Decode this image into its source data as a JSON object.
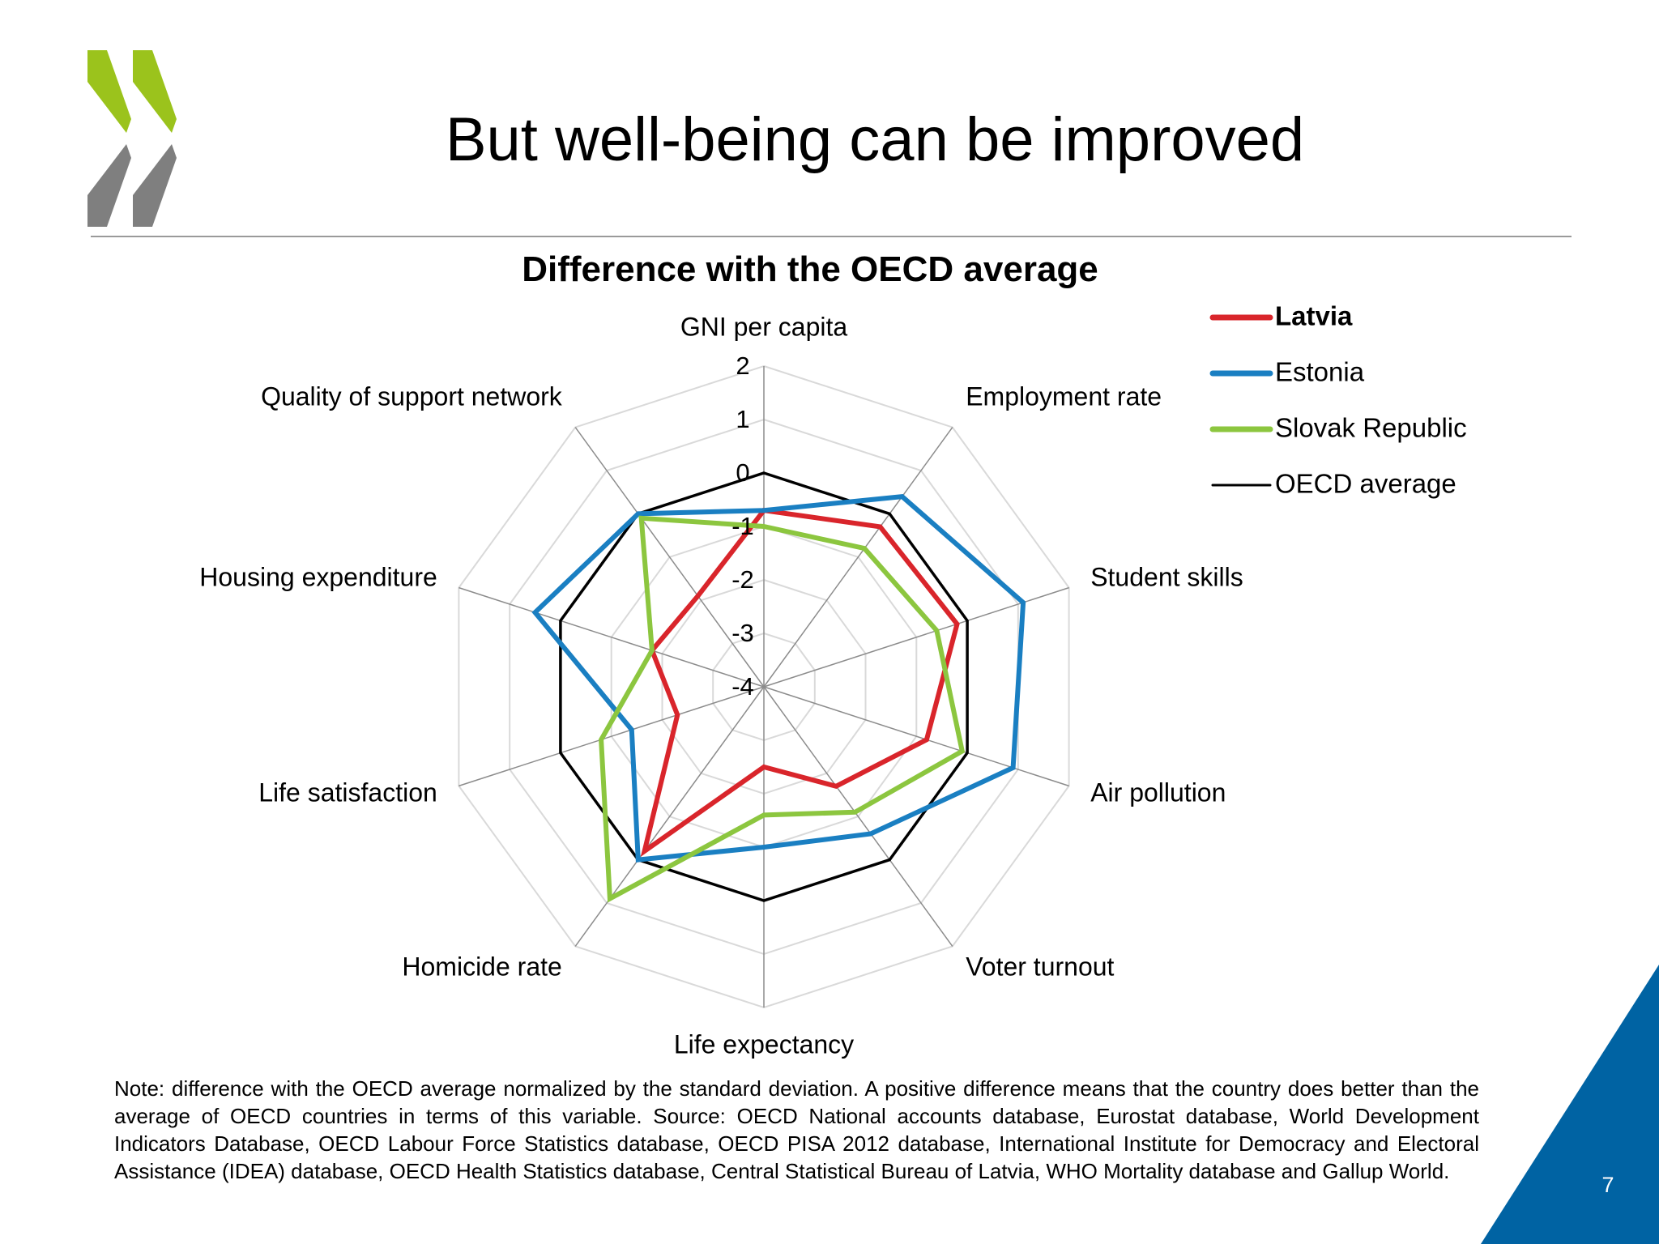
{
  "slide": {
    "title": "But well-being can be improved",
    "page_number": "7",
    "note": "Note: difference with the OECD average normalized by the standard deviation. A positive difference means that the country does better than the average of OECD countries in terms of this variable. Source: OECD National accounts database, Eurostat database, World Development Indicators Database, OECD Labour Force Statistics database, OECD PISA 2012 database, International Institute for Democracy and Electoral Assistance (IDEA) database, OECD Health Statistics database, Central Statistical Bureau of Latvia, WHO Mortality database and Gallup World.",
    "logo_icon": "oecd-chevrons-icon",
    "colors": {
      "logo_green": "#9bc31c",
      "logo_gray": "#7f7f7f",
      "corner_blue": "#0063a3"
    }
  },
  "chart_data": {
    "type": "radar",
    "title": "Difference with the OECD average",
    "categories": [
      "GNI per capita",
      "Employment rate",
      "Student skills",
      "Air pollution",
      "Voter turnout",
      "Life expectancy",
      "Homicide rate",
      "Life satisfaction",
      "Housing expenditure",
      "Quality of support network"
    ],
    "radial_ticks": [
      "2",
      "1",
      "0",
      "-1",
      "-2",
      "-3",
      "-4"
    ],
    "rlim": [
      -4,
      2
    ],
    "grid": true,
    "legend_position": "top-right",
    "series": [
      {
        "name": "Latvia",
        "color": "#d9252b",
        "bold": true,
        "values": [
          -0.7,
          -0.3,
          -0.2,
          -0.8,
          -1.7,
          -2.5,
          -0.2,
          -2.3,
          -1.8,
          -1.9
        ]
      },
      {
        "name": "Estonia",
        "color": "#1a7fc2",
        "bold": false,
        "values": [
          -0.7,
          0.4,
          1.1,
          0.9,
          -0.6,
          -1.0,
          0.0,
          -1.4,
          0.5,
          0.0
        ]
      },
      {
        "name": "Slovak Republic",
        "color": "#8cc63f",
        "bold": false,
        "values": [
          -1.0,
          -0.8,
          -0.6,
          -0.1,
          -1.1,
          -1.6,
          0.9,
          -0.8,
          -1.8,
          -0.1
        ]
      },
      {
        "name": "OECD average",
        "color": "#000000",
        "bold": false,
        "values": [
          0,
          0,
          0,
          0,
          0,
          0,
          0,
          0,
          0,
          0
        ]
      }
    ]
  }
}
